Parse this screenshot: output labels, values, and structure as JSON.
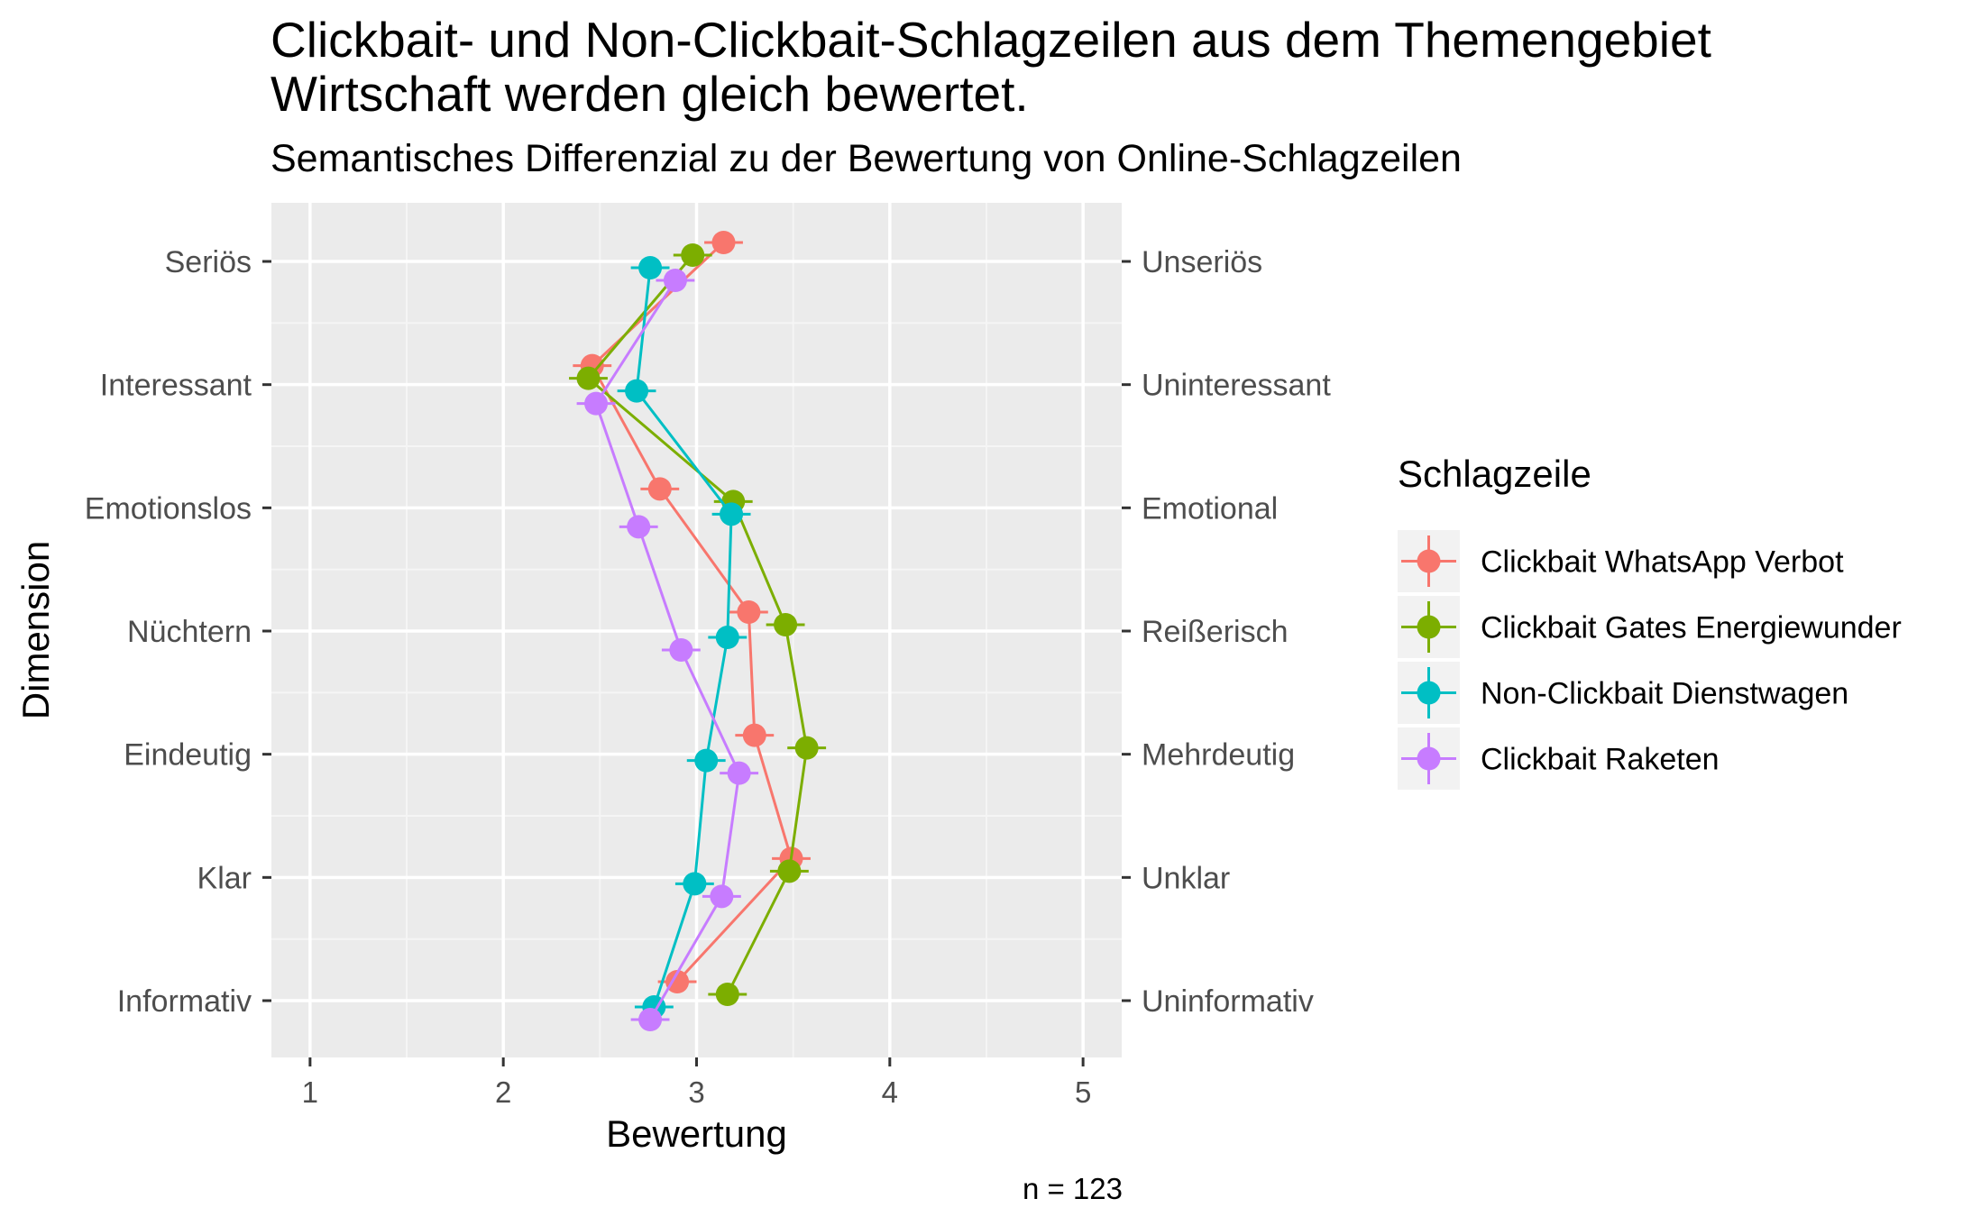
{
  "chart_data": {
    "type": "line",
    "title_lines": [
      "Clickbait- und Non-Clickbait-Schlagzeilen aus dem Themengebiet",
      "Wirtschaft werden gleich bewertet."
    ],
    "subtitle": "Semantisches Differenzial zu der Bewertung von Online-Schlagzeilen",
    "xlabel": "Bewertung",
    "ylabel": "Dimension",
    "caption": "n = 123",
    "xlim": [
      0.8,
      5.2
    ],
    "x_ticks": [
      "1",
      "2",
      "3",
      "4",
      "5"
    ],
    "grid": true,
    "legend_position": "right",
    "legend_title": "Schlagzeile",
    "dimensions_left": [
      "Seriös",
      "Interessant",
      "Emotionslos",
      "Nüchtern",
      "Eindeutig",
      "Klar",
      "Informativ"
    ],
    "dimensions_right": [
      "Unseriös",
      "Uninteressant",
      "Emotional",
      "Reißerisch",
      "Mehrdeutig",
      "Unklar",
      "Uninformativ"
    ],
    "series": [
      {
        "name": "Clickbait WhatsApp Verbot",
        "color": "#F8766D",
        "values": [
          3.14,
          2.46,
          2.81,
          3.27,
          3.3,
          3.49,
          2.9
        ]
      },
      {
        "name": "Clickbait Gates Energiewunder",
        "color": "#7CAE00",
        "values": [
          2.98,
          2.44,
          3.19,
          3.46,
          3.57,
          3.48,
          3.16
        ]
      },
      {
        "name": "Non-Clickbait Dienstwagen",
        "color": "#00BFC4",
        "values": [
          2.76,
          2.69,
          3.18,
          3.16,
          3.05,
          2.99,
          2.78
        ]
      },
      {
        "name": "Clickbait Raketen",
        "color": "#C77CFF",
        "values": [
          2.89,
          2.48,
          2.7,
          2.92,
          3.22,
          3.13,
          2.76
        ]
      }
    ]
  }
}
